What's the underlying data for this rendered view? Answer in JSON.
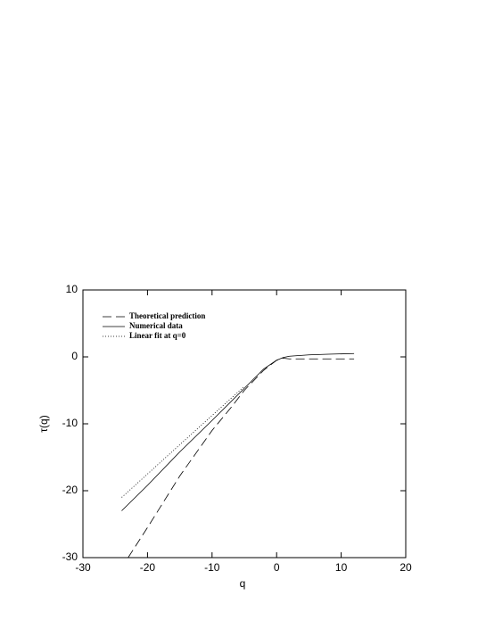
{
  "chart_data": {
    "type": "line",
    "x_label": "q",
    "y_label": "τ(q)",
    "xlim": [
      -30,
      20
    ],
    "xticks": [
      -30,
      -20,
      -10,
      0,
      10,
      20
    ],
    "ylim": [
      -30,
      10
    ],
    "yticks": [
      -30,
      -20,
      -10,
      0,
      10
    ],
    "legend": "upper left",
    "series": [
      {
        "name": "Theoretical prediction",
        "color": "#000000",
        "style": "dashed",
        "x": [
          -23,
          -20,
          -15,
          -10,
          -7,
          -5,
          -2,
          0,
          1,
          2,
          12
        ],
        "values": [
          -30,
          -25.5,
          -17.8,
          -11,
          -7.5,
          -5,
          -2,
          -0.5,
          -0.2,
          -0.3,
          -0.3
        ]
      },
      {
        "name": "Numerical data",
        "color": "#000000",
        "style": "solid",
        "x": [
          -24,
          -20,
          -15,
          -10,
          -5,
          -2,
          0,
          1,
          2,
          5,
          8,
          12
        ],
        "values": [
          -23,
          -19.2,
          -14.2,
          -9.5,
          -4.7,
          -1.8,
          -0.5,
          -0.1,
          0.1,
          0.3,
          0.4,
          0.5
        ]
      },
      {
        "name": "Linear fit at q=0",
        "color": "#000000",
        "style": "dotted",
        "x": [
          -24,
          -5
        ],
        "values": [
          -21,
          -4.4
        ]
      }
    ]
  }
}
